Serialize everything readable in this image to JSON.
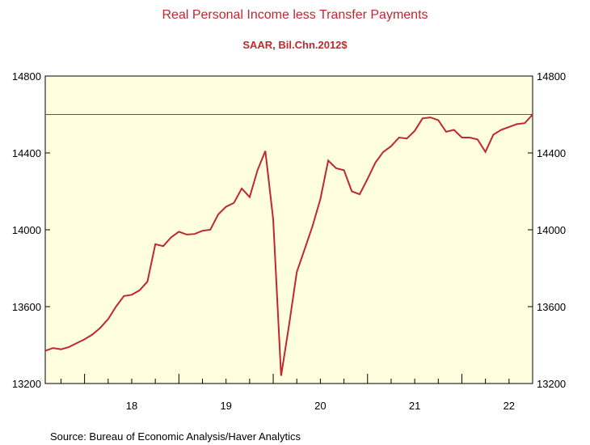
{
  "chart_data": {
    "type": "line",
    "title": "Real Personal Income less Transfer Payments",
    "subtitle": "SAAR, Bil.Chn.2012$",
    "source": "Source:  Bureau of Economic Analysis/Haver Analytics",
    "ylim": [
      13200,
      14800
    ],
    "yticks": [
      13200,
      13600,
      14000,
      14400,
      14800
    ],
    "ytick_labels": [
      "13200",
      "13600",
      "14000",
      "14400",
      "14800"
    ],
    "x_range": [
      "2017-08",
      "2022-10"
    ],
    "xtick_labels": [
      "18",
      "19",
      "20",
      "21",
      "22"
    ],
    "grid": false,
    "reference_line": 14600,
    "colors": {
      "line": "#c0282d",
      "plot_background": "#ffffe0",
      "text": "#c0282d"
    },
    "series": [
      {
        "x": [
          "2017-08",
          "2017-09",
          "2017-10",
          "2017-11",
          "2017-12",
          "2018-01",
          "2018-02",
          "2018-03",
          "2018-04",
          "2018-05",
          "2018-06",
          "2018-07",
          "2018-08",
          "2018-09",
          "2018-10",
          "2018-11",
          "2018-12",
          "2019-01",
          "2019-02",
          "2019-03",
          "2019-04",
          "2019-05",
          "2019-06",
          "2019-07",
          "2019-08",
          "2019-09",
          "2019-10",
          "2019-11",
          "2019-12",
          "2020-01",
          "2020-02",
          "2020-03",
          "2020-04",
          "2020-05",
          "2020-06",
          "2020-07",
          "2020-08",
          "2020-09",
          "2020-10",
          "2020-11",
          "2020-12",
          "2021-01",
          "2021-02",
          "2021-03",
          "2021-04",
          "2021-05",
          "2021-06",
          "2021-07",
          "2021-08",
          "2021-09",
          "2021-10",
          "2021-11",
          "2021-12",
          "2022-01",
          "2022-02",
          "2022-03",
          "2022-04",
          "2022-05",
          "2022-06",
          "2022-07",
          "2022-08",
          "2022-09",
          "2022-10"
        ],
        "values": [
          13370,
          13385,
          13378,
          13390,
          13410,
          13430,
          13455,
          13490,
          13535,
          13600,
          13655,
          13662,
          13685,
          13730,
          13925,
          13915,
          13960,
          13990,
          13975,
          13978,
          13995,
          14000,
          14080,
          14120,
          14140,
          14215,
          14170,
          14310,
          14410,
          14055,
          13240,
          13500,
          13780,
          13900,
          14020,
          14160,
          14360,
          14320,
          14310,
          14200,
          14185,
          14265,
          14350,
          14405,
          14435,
          14480,
          14475,
          14515,
          14580,
          14585,
          14570,
          14510,
          14520,
          14480,
          14480,
          14470,
          14405,
          14495,
          14520,
          14535,
          14550,
          14555,
          14600
        ]
      }
    ]
  }
}
